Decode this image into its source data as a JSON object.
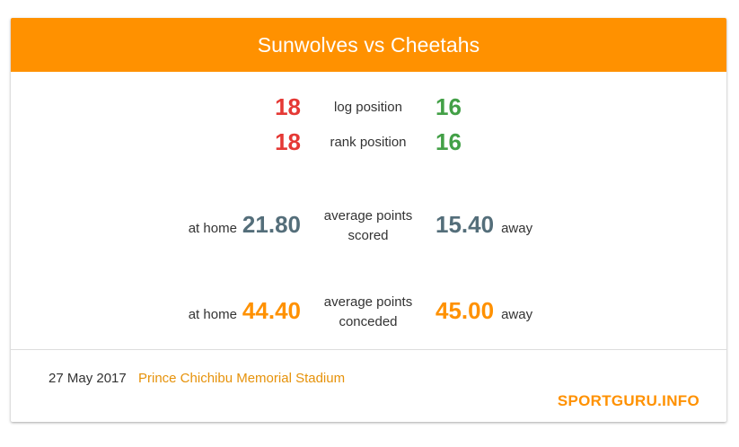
{
  "header": {
    "title": "Sunwolves vs Cheetahs"
  },
  "colors": {
    "accent": "#ff9100",
    "home_rank": "#e53935",
    "away_rank": "#43a047",
    "scored": "#546e7a",
    "conceded": "#ff9100"
  },
  "stats": {
    "log_position": {
      "home": "18",
      "label": "log position",
      "away": "16"
    },
    "rank_position": {
      "home": "18",
      "label": "rank position",
      "away": "16"
    },
    "points_scored": {
      "home_prefix": "at home",
      "home": "21.80",
      "label_line1": "average points",
      "label_line2": "scored",
      "away": "15.40",
      "away_suffix": "away"
    },
    "points_conceded": {
      "home_prefix": "at home",
      "home": "44.40",
      "label_line1": "average points",
      "label_line2": "conceded",
      "away": "45.00",
      "away_suffix": "away"
    }
  },
  "footer": {
    "date": "27 May 2017",
    "venue": "Prince Chichibu Memorial Stadium",
    "brand": "SPORTGURU.INFO"
  }
}
